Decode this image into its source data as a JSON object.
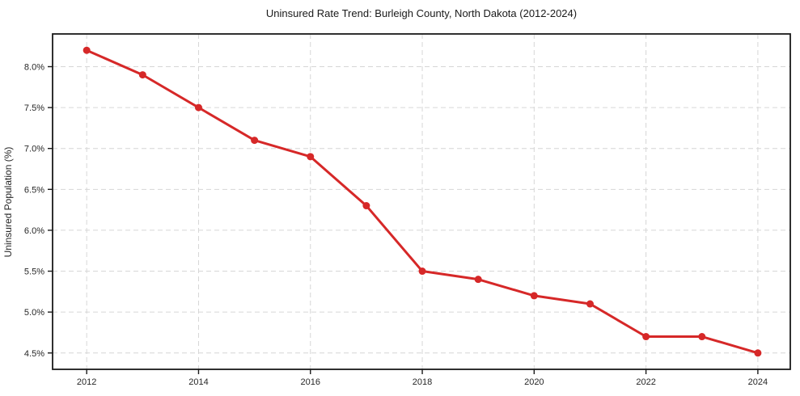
{
  "colors": {
    "background": "#ffffff",
    "line": "#d62828",
    "marker": "#d62828",
    "grid": "#d6d6d6",
    "spine": "#1a1a1a",
    "text": "#262626"
  },
  "chart_data": {
    "type": "line",
    "title": "Uninsured Rate Trend: Burleigh County, North Dakota (2012-2024)",
    "xlabel": "",
    "ylabel": "Uninsured Population (%)",
    "series": [
      {
        "name": "Uninsured rate",
        "x": [
          2012,
          2013,
          2014,
          2015,
          2016,
          2017,
          2018,
          2019,
          2020,
          2021,
          2022,
          2023,
          2024
        ],
        "values": [
          8.2,
          7.9,
          7.5,
          7.1,
          6.9,
          6.3,
          5.5,
          5.4,
          5.2,
          5.1,
          4.7,
          4.7,
          4.5
        ]
      }
    ],
    "xticks": [
      2012,
      2014,
      2016,
      2018,
      2020,
      2022,
      2024
    ],
    "yticks": [
      4.5,
      5.0,
      5.5,
      6.0,
      6.5,
      7.0,
      7.5,
      8.0
    ],
    "ytick_suffix": "%",
    "xlim": [
      2011.39,
      2024.58
    ],
    "ylim": [
      4.3,
      8.4
    ],
    "grid": true,
    "legend_position": "none",
    "marker": "circle"
  }
}
